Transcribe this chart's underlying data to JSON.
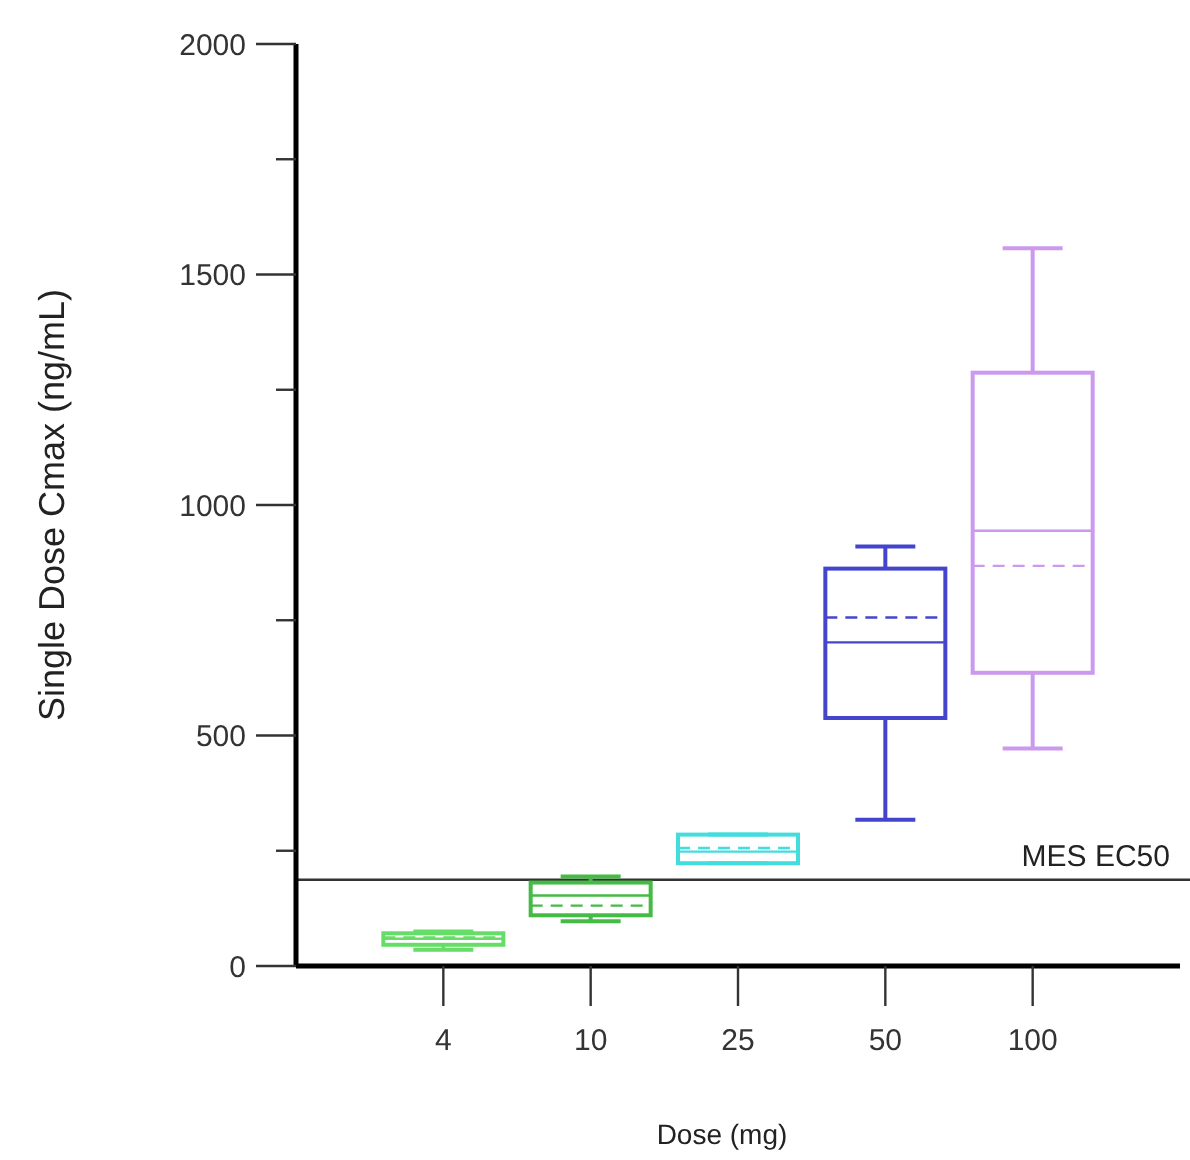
{
  "chart_data": {
    "type": "box",
    "xlabel": "Dose (mg)",
    "ylabel": "Single Dose Cmax (ng/mL)",
    "categories": [
      "4",
      "10",
      "25",
      "50",
      "100"
    ],
    "colors": [
      "#66dd66",
      "#44bb44",
      "#44dddd",
      "#4444cc",
      "#cc99ee"
    ],
    "boxes": [
      {
        "low": 35,
        "q1": 46,
        "median": 59,
        "q3": 71,
        "high": 75,
        "mean": 62
      },
      {
        "low": 97,
        "q1": 110,
        "median": 153,
        "q3": 181,
        "high": 194,
        "mean": 131
      },
      {
        "low": 223,
        "q1": 223,
        "median": 248,
        "q3": 285,
        "high": 285,
        "mean": 256
      },
      {
        "low": 317,
        "q1": 538,
        "median": 702,
        "q3": 862,
        "high": 910,
        "mean": 756
      },
      {
        "low": 472,
        "q1": 636,
        "median": 944,
        "q3": 1287,
        "high": 1557,
        "mean": 868
      }
    ],
    "ylim": [
      0,
      2000
    ],
    "yticks": [
      0,
      {
        "value": 250,
        "label": null
      },
      500,
      {
        "value": 750,
        "label": null
      },
      1000,
      {
        "value": 1250,
        "label": null
      },
      1500,
      {
        "value": 1750,
        "label": null
      },
      2000
    ],
    "ref_lines": [
      {
        "axis": "y",
        "value": 187,
        "label": "MES EC50",
        "color": "#333333"
      }
    ],
    "grid": false
  }
}
